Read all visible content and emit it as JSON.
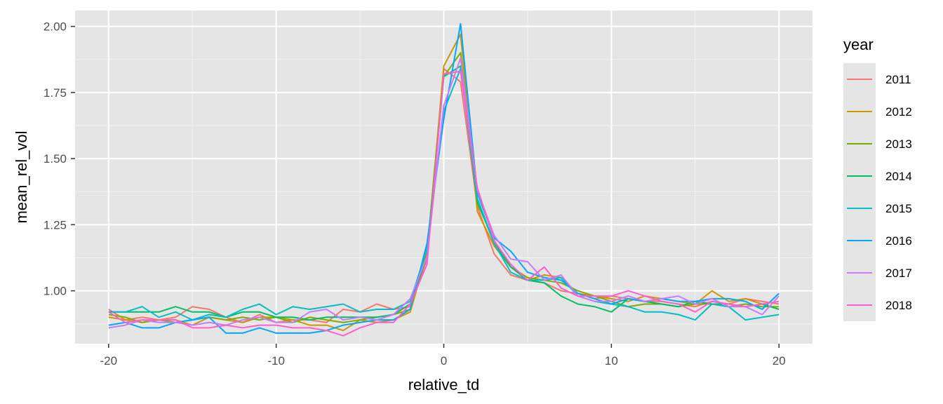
{
  "chart_data": {
    "type": "line",
    "xlabel": "relative_td",
    "ylabel": "mean_rel_vol",
    "xlim": [
      -22,
      22
    ],
    "ylim": [
      0.8,
      2.06
    ],
    "xticks": [
      -20,
      -10,
      0,
      10,
      20
    ],
    "xtick_labels": [
      "-20",
      "-10",
      "0",
      "10",
      "20"
    ],
    "yticks": [
      1.0,
      1.25,
      1.5,
      1.75,
      2.0
    ],
    "ytick_labels": [
      "1.00",
      "1.25",
      "1.50",
      "1.75",
      "2.00"
    ],
    "panel_background": "#e5e5e5",
    "grid": true,
    "legend_title": "year",
    "legend_position": "right",
    "x": [
      -20,
      -19,
      -18,
      -17,
      -16,
      -15,
      -14,
      -13,
      -12,
      -11,
      -10,
      -9,
      -8,
      -7,
      -6,
      -5,
      -4,
      -3,
      -2,
      -1,
      0,
      1,
      2,
      3,
      4,
      5,
      6,
      7,
      8,
      9,
      10,
      11,
      12,
      13,
      14,
      15,
      16,
      17,
      18,
      19,
      20
    ],
    "series": [
      {
        "name": "2011",
        "color": "#F8766D",
        "values": [
          0.93,
          0.89,
          0.9,
          0.89,
          0.9,
          0.94,
          0.93,
          0.9,
          0.88,
          0.91,
          0.88,
          0.89,
          0.89,
          0.88,
          0.93,
          0.92,
          0.95,
          0.93,
          0.94,
          1.12,
          1.84,
          1.79,
          1.32,
          1.14,
          1.06,
          1.04,
          1.03,
          1.0,
          0.99,
          0.97,
          0.98,
          0.97,
          0.96,
          0.96,
          0.95,
          0.94,
          0.96,
          0.95,
          0.97,
          0.96,
          0.95
        ]
      },
      {
        "name": "2012",
        "color": "#CD9600",
        "values": [
          0.9,
          0.89,
          0.88,
          0.89,
          0.89,
          0.87,
          0.9,
          0.89,
          0.88,
          0.9,
          0.9,
          0.89,
          0.87,
          0.87,
          0.85,
          0.89,
          0.88,
          0.89,
          0.92,
          1.14,
          1.85,
          1.97,
          1.3,
          1.17,
          1.09,
          1.04,
          1.06,
          1.05,
          0.99,
          0.98,
          0.97,
          0.96,
          0.98,
          0.97,
          0.96,
          0.95,
          1.0,
          0.96,
          0.97,
          0.95,
          0.93
        ]
      },
      {
        "name": "2013",
        "color": "#7CAE00",
        "values": [
          0.91,
          0.9,
          0.88,
          0.89,
          0.88,
          0.89,
          0.9,
          0.89,
          0.9,
          0.89,
          0.9,
          0.88,
          0.9,
          0.89,
          0.88,
          0.89,
          0.9,
          0.91,
          0.93,
          1.15,
          1.81,
          1.9,
          1.33,
          1.19,
          1.09,
          1.05,
          1.04,
          1.03,
          1.0,
          0.98,
          0.96,
          0.94,
          0.95,
          0.95,
          0.94,
          0.95,
          0.95,
          0.94,
          0.95,
          0.94,
          0.94
        ]
      },
      {
        "name": "2014",
        "color": "#00BE67",
        "values": [
          0.92,
          0.92,
          0.92,
          0.92,
          0.94,
          0.92,
          0.92,
          0.9,
          0.92,
          0.92,
          0.9,
          0.9,
          0.89,
          0.9,
          0.9,
          0.9,
          0.9,
          0.91,
          0.95,
          1.13,
          1.81,
          1.85,
          1.34,
          1.18,
          1.09,
          1.04,
          1.03,
          0.98,
          0.95,
          0.94,
          0.92,
          0.97,
          0.96,
          0.95,
          0.94,
          0.96,
          0.95,
          0.95,
          0.94,
          0.95,
          0.93
        ]
      },
      {
        "name": "2015",
        "color": "#00BFC4",
        "values": [
          0.92,
          0.92,
          0.94,
          0.9,
          0.92,
          0.89,
          0.91,
          0.9,
          0.93,
          0.95,
          0.91,
          0.94,
          0.93,
          0.94,
          0.95,
          0.92,
          0.93,
          0.93,
          0.96,
          1.16,
          1.68,
          1.84,
          1.35,
          1.18,
          1.07,
          1.04,
          1.04,
          1.05,
          0.98,
          0.96,
          0.95,
          0.94,
          0.92,
          0.92,
          0.91,
          0.89,
          0.95,
          0.94,
          0.89,
          0.9,
          0.91
        ]
      },
      {
        "name": "2016",
        "color": "#00A9FF",
        "values": [
          0.87,
          0.88,
          0.86,
          0.86,
          0.88,
          0.89,
          0.9,
          0.84,
          0.84,
          0.86,
          0.84,
          0.84,
          0.84,
          0.85,
          0.87,
          0.88,
          0.89,
          0.89,
          0.93,
          1.18,
          1.65,
          2.01,
          1.37,
          1.2,
          1.15,
          1.07,
          1.05,
          1.04,
          0.99,
          0.97,
          0.95,
          0.97,
          0.96,
          0.97,
          0.96,
          0.96,
          0.97,
          0.97,
          0.96,
          0.93,
          0.99
        ]
      },
      {
        "name": "2017",
        "color": "#C77CFF",
        "values": [
          0.86,
          0.87,
          0.89,
          0.88,
          0.88,
          0.87,
          0.88,
          0.87,
          0.89,
          0.9,
          0.88,
          0.88,
          0.92,
          0.93,
          0.89,
          0.9,
          0.89,
          0.91,
          0.97,
          1.13,
          1.7,
          1.88,
          1.38,
          1.21,
          1.12,
          1.11,
          1.04,
          1.06,
          0.98,
          0.96,
          0.96,
          0.98,
          0.96,
          0.97,
          0.98,
          0.95,
          0.97,
          0.94,
          0.94,
          0.91,
          0.98
        ]
      },
      {
        "name": "2018",
        "color": "#FF61CC",
        "values": [
          0.92,
          0.88,
          0.89,
          0.89,
          0.89,
          0.86,
          0.86,
          0.87,
          0.86,
          0.87,
          0.87,
          0.86,
          0.86,
          0.85,
          0.83,
          0.86,
          0.88,
          0.88,
          0.95,
          1.1,
          1.82,
          1.83,
          1.39,
          1.19,
          1.1,
          1.04,
          1.09,
          1.01,
          0.98,
          0.98,
          0.98,
          1.0,
          0.98,
          0.96,
          0.95,
          0.92,
          0.96,
          0.95,
          0.94,
          0.95,
          0.96
        ]
      }
    ]
  }
}
